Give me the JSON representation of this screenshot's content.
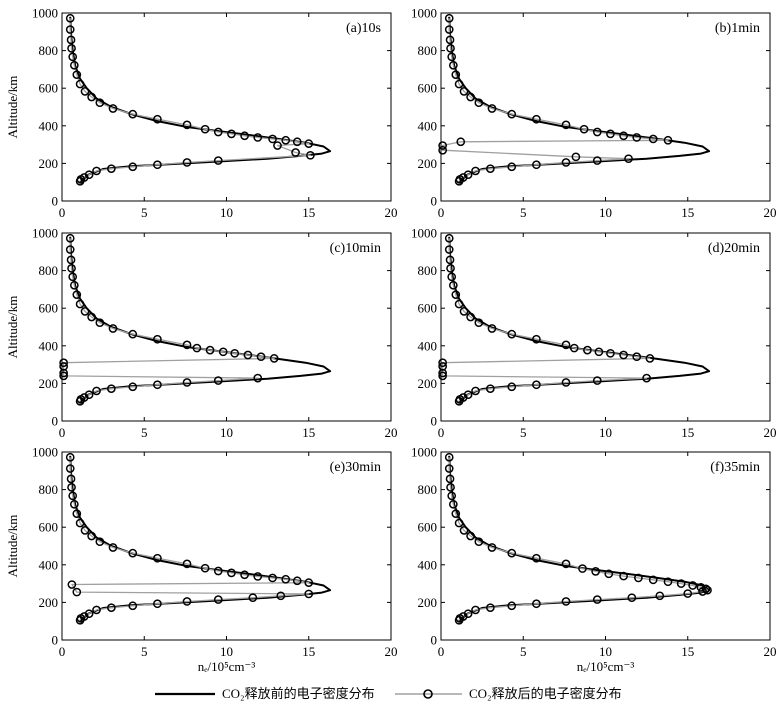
{
  "chart_data": [
    {
      "type": "line",
      "title": "(a)10s",
      "xlim": [
        0,
        20
      ],
      "ylim": [
        0,
        1000
      ],
      "xticks": [
        "0",
        "5",
        "10",
        "15",
        "20"
      ],
      "yticks": [
        "0",
        "200",
        "400",
        "600",
        "800",
        "1000"
      ],
      "ylabel": "Altitude/km",
      "xlabel": "",
      "series": [
        {
          "name": "CO₂释放前的电子密度分布",
          "x": [
            1.1,
            1.6,
            2.5,
            4.2,
            6.5,
            9.5,
            12.5,
            14.5,
            15.8,
            16.3,
            15.9,
            14.8,
            13.2,
            11.5,
            9.5,
            7.5,
            5.8,
            4.3,
            3.0,
            2.1,
            1.5,
            1.1,
            0.8,
            0.65,
            0.55,
            0.5
          ],
          "y": [
            100,
            140,
            170,
            185,
            195,
            210,
            225,
            240,
            252,
            265,
            290,
            310,
            330,
            350,
            372,
            395,
            425,
            460,
            500,
            545,
            600,
            650,
            720,
            800,
            890,
            980
          ]
        },
        {
          "name": "CO₂释放后的电子密度分布",
          "marker": "circle",
          "x": [
            1.1,
            1.15,
            1.35,
            1.65,
            2.1,
            3.0,
            4.3,
            5.8,
            7.6,
            9.5,
            15.1,
            14.2,
            13.1,
            15.0,
            14.3,
            13.6,
            12.8,
            11.9,
            11.1,
            10.3,
            9.5,
            8.7,
            7.6,
            5.8,
            4.3,
            3.1,
            2.3,
            1.8,
            1.4,
            1.1,
            0.9,
            0.75,
            0.65,
            0.58,
            0.55,
            0.5,
            0.5
          ],
          "y": [
            105,
            115,
            125,
            140,
            160,
            172,
            182,
            193,
            205,
            215,
            243,
            258,
            295,
            305,
            315,
            323,
            330,
            338,
            347,
            357,
            367,
            382,
            405,
            435,
            462,
            492,
            523,
            553,
            583,
            622,
            672,
            722,
            767,
            812,
            857,
            912,
            972
          ]
        }
      ]
    },
    {
      "type": "line",
      "title": "(b)1min",
      "xlim": [
        0,
        20
      ],
      "ylim": [
        0,
        1000
      ],
      "xticks": [
        "0",
        "5",
        "10",
        "15",
        "20"
      ],
      "yticks": [
        "0",
        "200",
        "400",
        "600",
        "800",
        "1000"
      ],
      "ylabel": "",
      "xlabel": "",
      "series": [
        {
          "name": "CO₂释放前的电子密度分布",
          "x": [
            1.1,
            1.6,
            2.5,
            4.2,
            6.5,
            9.5,
            12.5,
            14.5,
            15.8,
            16.3,
            15.9,
            14.8,
            13.2,
            11.5,
            9.5,
            7.5,
            5.8,
            4.3,
            3.0,
            2.1,
            1.5,
            1.1,
            0.8,
            0.65,
            0.55,
            0.5
          ],
          "y": [
            100,
            140,
            170,
            185,
            195,
            210,
            225,
            240,
            252,
            265,
            290,
            310,
            330,
            350,
            372,
            395,
            425,
            460,
            500,
            545,
            600,
            650,
            720,
            800,
            890,
            980
          ]
        },
        {
          "name": "CO₂释放后的电子密度分布",
          "marker": "circle",
          "x": [
            1.1,
            1.15,
            1.35,
            1.65,
            2.1,
            3.0,
            4.3,
            5.8,
            7.6,
            9.5,
            11.4,
            8.2,
            0.1,
            0.1,
            1.2,
            13.8,
            12.9,
            11.9,
            11.1,
            10.3,
            9.5,
            8.7,
            7.6,
            5.8,
            4.3,
            3.1,
            2.3,
            1.8,
            1.4,
            1.1,
            0.9,
            0.75,
            0.65,
            0.58,
            0.55,
            0.5,
            0.5
          ],
          "y": [
            105,
            115,
            125,
            140,
            160,
            172,
            182,
            193,
            205,
            215,
            225,
            235,
            270,
            295,
            315,
            323,
            330,
            338,
            347,
            357,
            367,
            382,
            405,
            435,
            462,
            492,
            523,
            553,
            583,
            622,
            672,
            722,
            767,
            812,
            857,
            912,
            972
          ]
        }
      ]
    },
    {
      "type": "line",
      "title": "(c)10min",
      "xlim": [
        0,
        20
      ],
      "ylim": [
        0,
        1000
      ],
      "xticks": [
        "0",
        "5",
        "10",
        "15",
        "20"
      ],
      "yticks": [
        "0",
        "200",
        "400",
        "600",
        "800",
        "1000"
      ],
      "ylabel": "Altitude/km",
      "xlabel": "",
      "series": [
        {
          "name": "CO₂释放前的电子密度分布",
          "x": [
            1.1,
            1.6,
            2.5,
            4.2,
            6.5,
            9.5,
            12.5,
            14.5,
            15.8,
            16.3,
            15.9,
            14.8,
            13.2,
            11.5,
            9.5,
            7.5,
            5.8,
            4.3,
            3.0,
            2.1,
            1.5,
            1.1,
            0.8,
            0.65,
            0.55,
            0.5
          ],
          "y": [
            100,
            140,
            170,
            185,
            195,
            210,
            225,
            240,
            252,
            265,
            290,
            310,
            330,
            350,
            372,
            395,
            425,
            460,
            500,
            545,
            600,
            650,
            720,
            800,
            890,
            980
          ]
        },
        {
          "name": "CO₂释放后的电子密度分布",
          "marker": "circle",
          "x": [
            1.1,
            1.15,
            1.35,
            1.65,
            2.1,
            3.0,
            4.3,
            5.8,
            7.6,
            9.5,
            11.9,
            0.1,
            0.1,
            0.1,
            0.1,
            12.9,
            12.1,
            11.3,
            10.5,
            9.8,
            9.0,
            8.2,
            7.6,
            5.8,
            4.3,
            3.1,
            2.3,
            1.8,
            1.4,
            1.1,
            0.9,
            0.75,
            0.65,
            0.58,
            0.55,
            0.5,
            0.5
          ],
          "y": [
            105,
            115,
            125,
            140,
            160,
            172,
            182,
            193,
            205,
            215,
            228,
            240,
            255,
            290,
            310,
            333,
            342,
            351,
            360,
            368,
            377,
            388,
            405,
            435,
            462,
            492,
            523,
            553,
            583,
            622,
            672,
            722,
            767,
            812,
            857,
            912,
            972
          ]
        }
      ]
    },
    {
      "type": "line",
      "title": "(d)20min",
      "xlim": [
        0,
        20
      ],
      "ylim": [
        0,
        1000
      ],
      "xticks": [
        "0",
        "5",
        "10",
        "15",
        "20"
      ],
      "yticks": [
        "0",
        "200",
        "400",
        "600",
        "800",
        "1000"
      ],
      "ylabel": "",
      "xlabel": "",
      "series": [
        {
          "name": "CO₂释放前的电子密度分布",
          "x": [
            1.1,
            1.6,
            2.5,
            4.2,
            6.5,
            9.5,
            12.5,
            14.5,
            15.8,
            16.3,
            15.9,
            14.8,
            13.2,
            11.5,
            9.5,
            7.5,
            5.8,
            4.3,
            3.0,
            2.1,
            1.5,
            1.1,
            0.8,
            0.65,
            0.55,
            0.5
          ],
          "y": [
            100,
            140,
            170,
            185,
            195,
            210,
            225,
            240,
            252,
            265,
            290,
            310,
            330,
            350,
            372,
            395,
            425,
            460,
            500,
            545,
            600,
            650,
            720,
            800,
            890,
            980
          ]
        },
        {
          "name": "CO₂释放后的电子密度分布",
          "marker": "circle",
          "x": [
            1.1,
            1.15,
            1.35,
            1.65,
            2.1,
            3.0,
            4.3,
            5.8,
            7.6,
            9.5,
            12.5,
            0.1,
            0.1,
            0.1,
            0.1,
            12.7,
            11.9,
            11.1,
            10.3,
            9.6,
            8.9,
            8.1,
            7.6,
            5.8,
            4.3,
            3.1,
            2.3,
            1.8,
            1.4,
            1.1,
            0.9,
            0.75,
            0.65,
            0.58,
            0.55,
            0.5,
            0.5
          ],
          "y": [
            105,
            115,
            125,
            140,
            160,
            172,
            182,
            193,
            205,
            215,
            228,
            240,
            255,
            290,
            310,
            333,
            342,
            351,
            360,
            368,
            377,
            388,
            405,
            435,
            462,
            492,
            523,
            553,
            583,
            622,
            672,
            722,
            767,
            812,
            857,
            912,
            972
          ]
        }
      ]
    },
    {
      "type": "line",
      "title": "(e)30min",
      "xlim": [
        0,
        20
      ],
      "ylim": [
        0,
        1000
      ],
      "xticks": [
        "0",
        "5",
        "10",
        "15",
        "20"
      ],
      "yticks": [
        "0",
        "200",
        "400",
        "600",
        "800",
        "1000"
      ],
      "ylabel": "Altitude/km",
      "xlabel": "nₑ/10⁵cm⁻³",
      "series": [
        {
          "name": "CO₂释放前的电子密度分布",
          "x": [
            1.1,
            1.6,
            2.5,
            4.2,
            6.5,
            9.5,
            12.5,
            14.5,
            15.8,
            16.3,
            15.9,
            14.8,
            13.2,
            11.5,
            9.5,
            7.5,
            5.8,
            4.3,
            3.0,
            2.1,
            1.5,
            1.1,
            0.8,
            0.65,
            0.55,
            0.5
          ],
          "y": [
            100,
            140,
            170,
            185,
            195,
            210,
            225,
            240,
            252,
            265,
            290,
            310,
            330,
            350,
            372,
            395,
            425,
            460,
            500,
            545,
            600,
            650,
            720,
            800,
            890,
            980
          ]
        },
        {
          "name": "CO₂释放后的电子密度分布",
          "marker": "circle",
          "x": [
            1.1,
            1.15,
            1.35,
            1.65,
            2.1,
            3.0,
            4.3,
            5.8,
            7.6,
            9.5,
            11.6,
            13.3,
            15.0,
            0.9,
            0.6,
            15.0,
            14.3,
            13.6,
            12.8,
            11.9,
            11.1,
            10.3,
            9.5,
            8.7,
            7.6,
            5.8,
            4.3,
            3.1,
            2.3,
            1.8,
            1.4,
            1.1,
            0.9,
            0.75,
            0.65,
            0.58,
            0.55,
            0.5,
            0.5
          ],
          "y": [
            105,
            115,
            125,
            140,
            160,
            172,
            182,
            193,
            205,
            215,
            225,
            235,
            245,
            255,
            295,
            305,
            315,
            323,
            330,
            338,
            347,
            357,
            367,
            382,
            405,
            435,
            462,
            492,
            523,
            553,
            583,
            622,
            672,
            722,
            767,
            812,
            857,
            912,
            972
          ]
        }
      ]
    },
    {
      "type": "line",
      "title": "(f)35min",
      "xlim": [
        0,
        20
      ],
      "ylim": [
        0,
        1000
      ],
      "xticks": [
        "0",
        "5",
        "10",
        "15",
        "20"
      ],
      "yticks": [
        "0",
        "200",
        "400",
        "600",
        "800",
        "1000"
      ],
      "ylabel": "",
      "xlabel": "nₑ/10⁵cm⁻³",
      "series": [
        {
          "name": "CO₂释放前的电子密度分布",
          "x": [
            1.1,
            1.6,
            2.5,
            4.2,
            6.5,
            9.5,
            12.5,
            14.5,
            15.8,
            16.3,
            15.9,
            14.8,
            13.2,
            11.5,
            9.5,
            7.5,
            5.8,
            4.3,
            3.0,
            2.1,
            1.5,
            1.1,
            0.8,
            0.65,
            0.55,
            0.5
          ],
          "y": [
            100,
            140,
            170,
            185,
            195,
            210,
            225,
            240,
            252,
            265,
            290,
            310,
            330,
            350,
            372,
            395,
            425,
            460,
            500,
            545,
            600,
            650,
            720,
            800,
            890,
            980
          ]
        },
        {
          "name": "CO₂释放后的电子密度分布",
          "marker": "circle",
          "x": [
            1.1,
            1.15,
            1.35,
            1.65,
            2.1,
            3.0,
            4.3,
            5.8,
            7.6,
            9.5,
            11.6,
            13.3,
            15.0,
            15.9,
            16.2,
            16.1,
            15.8,
            15.3,
            14.6,
            13.8,
            12.9,
            12.0,
            11.1,
            10.2,
            9.4,
            8.6,
            7.6,
            5.8,
            4.3,
            3.1,
            2.3,
            1.8,
            1.4,
            1.1,
            0.9,
            0.75,
            0.65,
            0.58,
            0.55,
            0.5,
            0.5
          ],
          "y": [
            105,
            115,
            125,
            140,
            160,
            172,
            182,
            193,
            205,
            215,
            225,
            235,
            247,
            258,
            265,
            272,
            280,
            290,
            300,
            310,
            320,
            330,
            340,
            352,
            365,
            380,
            405,
            435,
            462,
            492,
            523,
            553,
            583,
            622,
            672,
            722,
            767,
            812,
            857,
            912,
            972
          ]
        }
      ]
    }
  ],
  "legend": {
    "before_label": "CO₂释放前的电子密度分布",
    "after_label": "CO₂释放后的电子密度分布",
    "placement": "bottom-center"
  },
  "colors": {
    "before_line": "#000000",
    "after_line": "#a0a0a0",
    "marker_edge": "#000000",
    "axis": "#000000"
  }
}
